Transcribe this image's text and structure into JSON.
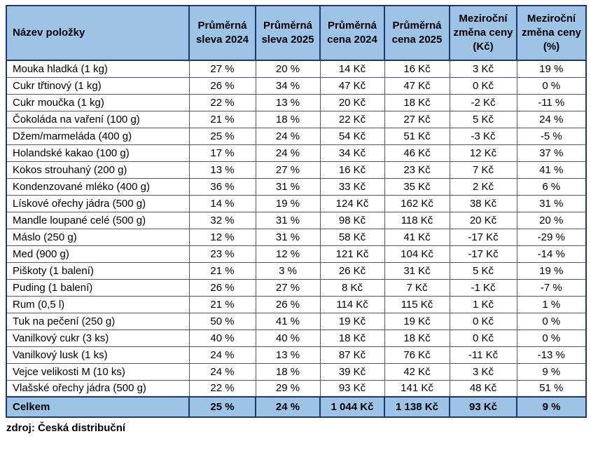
{
  "colors": {
    "header_fill": "#9DC3E6",
    "total_fill": "#9DC3E6",
    "heavy_border": "#1F3864",
    "grid_border": "#5A5A5A",
    "text": "#000000"
  },
  "chart_data": {
    "type": "table",
    "columns": [
      "Název položky",
      "Průměrná sleva 2024",
      "Průměrná sleva 2025",
      "Průměrná cena 2024",
      "Průměrná cena 2025",
      "Meziroční změna ceny (Kč)",
      "Meziroční změna ceny (%)"
    ],
    "rows": [
      [
        "Mouka hladká (1 kg)",
        "27 %",
        "20 %",
        "14 Kč",
        "16 Kč",
        "3 Kč",
        "19 %"
      ],
      [
        "Cukr třtinový (1 kg)",
        "26 %",
        "34 %",
        "47 Kč",
        "47 Kč",
        "0 Kč",
        "0 %"
      ],
      [
        "Cukr moučka (1 kg)",
        "22 %",
        "13 %",
        "20 Kč",
        "18 Kč",
        "-2 Kč",
        "-11 %"
      ],
      [
        "Čokoláda na vaření (100 g)",
        "21 %",
        "18 %",
        "22 Kč",
        "27 Kč",
        "5 Kč",
        "24 %"
      ],
      [
        "Džem/marmeláda (400 g)",
        "25 %",
        "24 %",
        "54 Kč",
        "51 Kč",
        "-3 Kč",
        "-5 %"
      ],
      [
        "Holandské kakao (100 g)",
        "17 %",
        "24 %",
        "34 Kč",
        "46 Kč",
        "12 Kč",
        "37 %"
      ],
      [
        "Kokos strouhaný (200 g)",
        "13 %",
        "27 %",
        "16 Kč",
        "23 Kč",
        "7 Kč",
        "41 %"
      ],
      [
        "Kondenzované mléko (400 g)",
        "36 %",
        "31 %",
        "33 Kč",
        "35 Kč",
        "2 Kč",
        "6 %"
      ],
      [
        "Lískové ořechy jádra (500 g)",
        "14 %",
        "19 %",
        "124 Kč",
        "162 Kč",
        "38 Kč",
        "31 %"
      ],
      [
        "Mandle loupané celé (500 g)",
        "32 %",
        "31 %",
        "98 Kč",
        "118 Kč",
        "20 Kč",
        "20 %"
      ],
      [
        "Máslo (250 g)",
        "12 %",
        "31 %",
        "58 Kč",
        "41 Kč",
        "-17 Kč",
        "-29 %"
      ],
      [
        "Med (900 g)",
        "23 %",
        "12 %",
        "121 Kč",
        "104 Kč",
        "-17 Kč",
        "-14 %"
      ],
      [
        "Piškoty (1 balení)",
        "21 %",
        "3 %",
        "26 Kč",
        "31 Kč",
        "5 Kč",
        "19 %"
      ],
      [
        "Puding (1 balení)",
        "26 %",
        "27 %",
        "8 Kč",
        "7 Kč",
        "-1 Kč",
        "-7 %"
      ],
      [
        "Rum (0,5 l)",
        "21 %",
        "26 %",
        "114 Kč",
        "115 Kč",
        "1 Kč",
        "1 %"
      ],
      [
        "Tuk na pečení (250 g)",
        "50 %",
        "41 %",
        "19 Kč",
        "19 Kč",
        "0 Kč",
        "0 %"
      ],
      [
        "Vanilkový cukr (3 ks)",
        "40 %",
        "40 %",
        "18 Kč",
        "18 Kč",
        "0 Kč",
        "0 %"
      ],
      [
        "Vanilkový lusk (1 ks)",
        "24 %",
        "13 %",
        "87 Kč",
        "76 Kč",
        "-11 Kč",
        "-13 %"
      ],
      [
        "Vejce velikosti M (10 ks)",
        "24 %",
        "18 %",
        "39 Kč",
        "42 Kč",
        "3 Kč",
        "9 %"
      ],
      [
        "Vlašské ořechy jádra (500 g)",
        "22 %",
        "29 %",
        "93 Kč",
        "141 Kč",
        "48 Kč",
        "51 %"
      ]
    ],
    "total_row": [
      "Celkem",
      "25 %",
      "24 %",
      "1 044 Kč",
      "1 138 Kč",
      "93 Kč",
      "9 %"
    ],
    "title": "",
    "legend": [],
    "notes": "grid on; header and total rows highlighted blue"
  },
  "footer": {
    "source": "zdroj: Česká distribuční"
  }
}
